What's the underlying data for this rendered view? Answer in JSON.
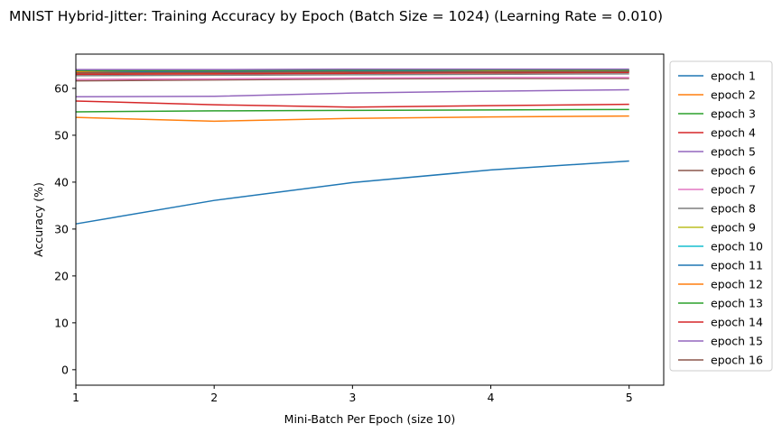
{
  "chart_data": {
    "type": "line",
    "title": "MNIST Hybrid-Jitter: Training Accuracy by Epoch (Batch Size = 1024) (Learning Rate = 0.010)",
    "xlabel": "Mini-Batch Per Epoch (size 10)",
    "ylabel": "Accuracy (%)",
    "x": [
      1,
      2,
      3,
      4,
      5
    ],
    "xlim": [
      1,
      5.25
    ],
    "ylim": [
      -3.3,
      67.3
    ],
    "xticks": [
      1,
      2,
      3,
      4,
      5
    ],
    "yticks": [
      0,
      10,
      20,
      30,
      40,
      50,
      60
    ],
    "grid": false,
    "legend_position": "outside-right",
    "series": [
      {
        "name": "epoch 1",
        "color": "#1f77b4",
        "values": [
          31.1,
          36.1,
          39.9,
          42.6,
          44.5
        ]
      },
      {
        "name": "epoch 2",
        "color": "#ff7f0e",
        "values": [
          53.8,
          53.0,
          53.6,
          53.9,
          54.1
        ]
      },
      {
        "name": "epoch 3",
        "color": "#2ca02c",
        "values": [
          55.0,
          55.2,
          55.3,
          55.4,
          55.5
        ]
      },
      {
        "name": "epoch 4",
        "color": "#d62728",
        "values": [
          57.3,
          56.5,
          56.0,
          56.3,
          56.6
        ]
      },
      {
        "name": "epoch 5",
        "color": "#9467bd",
        "values": [
          58.2,
          58.3,
          59.0,
          59.4,
          59.7
        ]
      },
      {
        "name": "epoch 6",
        "color": "#8c564b",
        "values": [
          61.6,
          61.8,
          62.0,
          62.1,
          62.1
        ]
      },
      {
        "name": "epoch 7",
        "color": "#e377c2",
        "values": [
          61.9,
          62.0,
          62.2,
          62.3,
          62.3
        ]
      },
      {
        "name": "epoch 8",
        "color": "#7f7f7f",
        "values": [
          62.7,
          62.8,
          62.9,
          63.0,
          63.1
        ]
      },
      {
        "name": "epoch 9",
        "color": "#bcbd22",
        "values": [
          63.2,
          63.3,
          63.4,
          63.5,
          63.6
        ]
      },
      {
        "name": "epoch 10",
        "color": "#17becf",
        "values": [
          63.4,
          63.5,
          63.6,
          63.7,
          63.7
        ]
      },
      {
        "name": "epoch 11",
        "color": "#1f77b4",
        "values": [
          63.6,
          63.6,
          63.7,
          63.8,
          63.8
        ]
      },
      {
        "name": "epoch 12",
        "color": "#ff7f0e",
        "values": [
          63.5,
          63.1,
          63.4,
          63.6,
          63.7
        ]
      },
      {
        "name": "epoch 13",
        "color": "#2ca02c",
        "values": [
          63.8,
          63.8,
          63.9,
          63.9,
          63.9
        ]
      },
      {
        "name": "epoch 14",
        "color": "#d62728",
        "values": [
          63.0,
          63.1,
          63.2,
          63.3,
          63.4
        ]
      },
      {
        "name": "epoch 15",
        "color": "#9467bd",
        "values": [
          64.0,
          64.0,
          64.1,
          64.1,
          64.1
        ]
      },
      {
        "name": "epoch 16",
        "color": "#8c564b",
        "values": [
          63.3,
          63.4,
          63.5,
          63.5,
          63.6
        ]
      }
    ]
  }
}
